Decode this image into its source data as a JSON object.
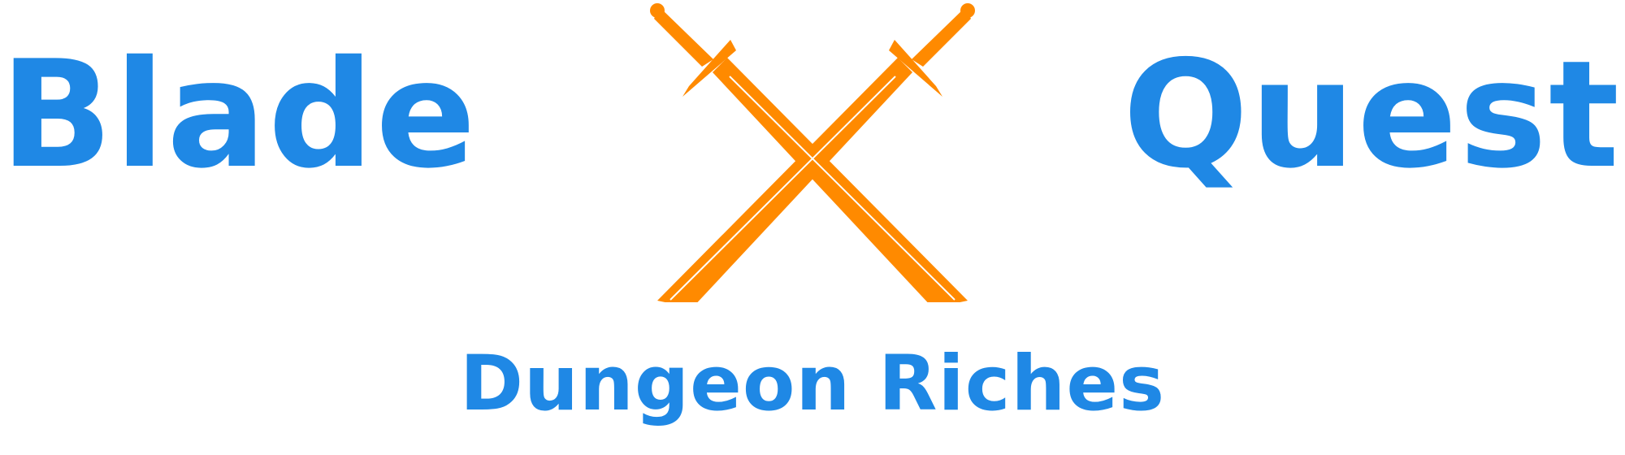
{
  "logo": {
    "title_left": "Blade",
    "title_right": "Quest",
    "subtitle": "Dungeon Riches",
    "emblem_icon": "crossed-swords-icon",
    "colors": {
      "text": "#1f88e5",
      "swords": "#ff8a00",
      "highlight": "#ffffff",
      "background": "#ffffff"
    }
  }
}
